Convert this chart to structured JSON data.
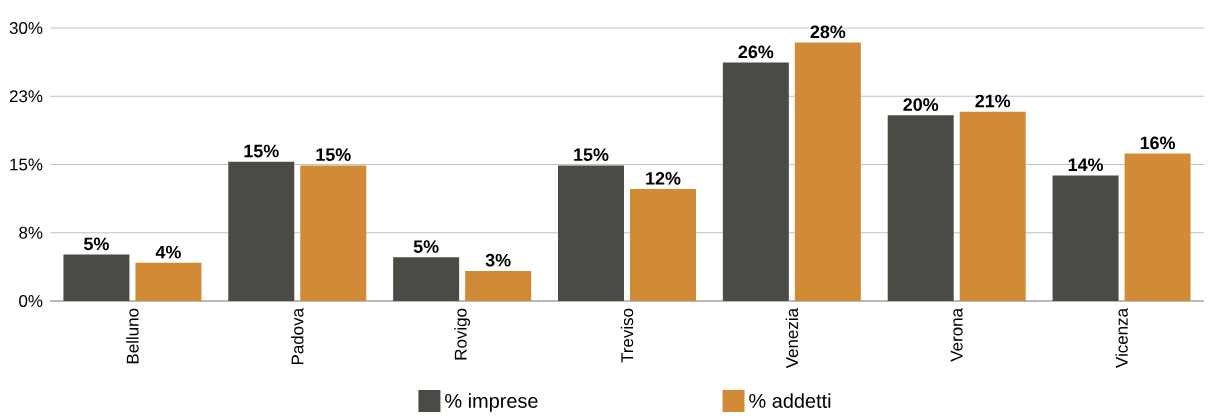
{
  "chart_data": {
    "type": "bar",
    "categories": [
      "Belluno",
      "Padova",
      "Rovigo",
      "Treviso",
      "Venezia",
      "Verona",
      "Vicenza"
    ],
    "series": [
      {
        "name": "% imprese",
        "color": "#4b4b45",
        "values": [
          5.1,
          15.3,
          4.8,
          14.9,
          26.2,
          20.4,
          13.8
        ],
        "value_labels": [
          "5%",
          "15%",
          "5%",
          "15%",
          "26%",
          "20%",
          "14%"
        ]
      },
      {
        "name": "% addetti",
        "color": "#d18b37",
        "values": [
          4.2,
          14.9,
          3.3,
          12.3,
          28.4,
          20.8,
          16.2
        ],
        "value_labels": [
          "4%",
          "15%",
          "3%",
          "12%",
          "28%",
          "21%",
          "16%"
        ]
      }
    ],
    "ylim": [
      0,
      30
    ],
    "yticks": [
      {
        "value": 0,
        "label": "0%"
      },
      {
        "value": 7.5,
        "label": "8%"
      },
      {
        "value": 15,
        "label": "15%"
      },
      {
        "value": 22.5,
        "label": "23%"
      },
      {
        "value": 30,
        "label": "30%"
      }
    ],
    "grid": "y",
    "legend": "bottom"
  }
}
